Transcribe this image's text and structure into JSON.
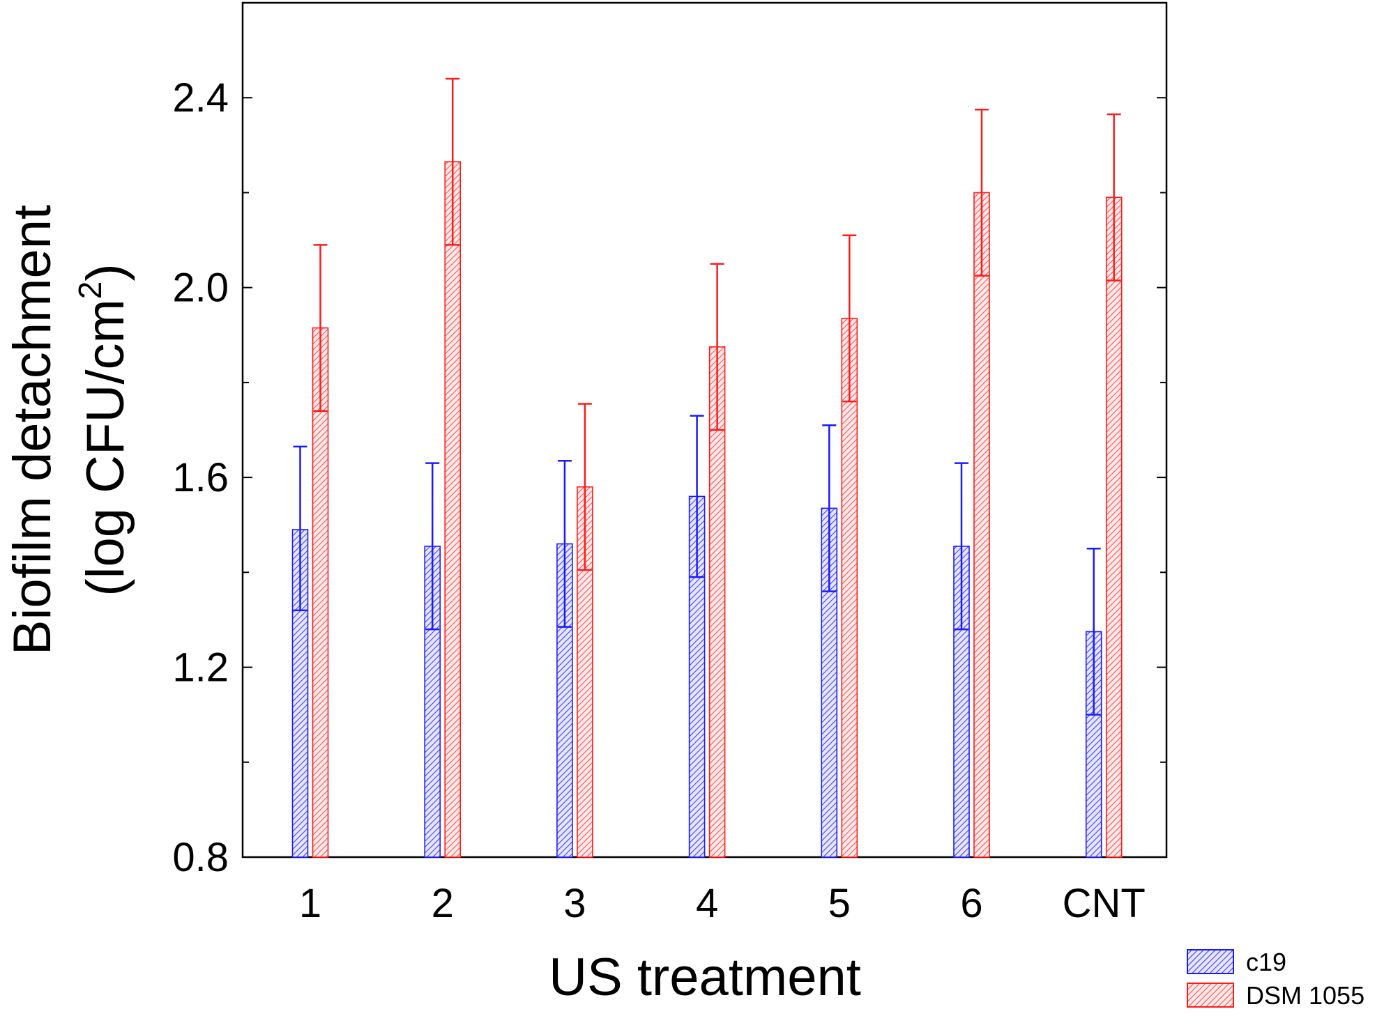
{
  "chart_data": {
    "type": "bar",
    "title": "",
    "xlabel": "US treatment",
    "ylabel_main": "Biofilm detachment",
    "ylabel_unit_prefix": "(log CFU/cm",
    "ylabel_unit_sup": "2",
    "ylabel_unit_suffix": ")",
    "ylim": [
      0.8,
      2.6
    ],
    "yticks": [
      0.8,
      1.2,
      1.6,
      2.0,
      2.4
    ],
    "ytick_labels": [
      "0.8",
      "1.2",
      "1.6",
      "2.0",
      "2.4"
    ],
    "yminor_ticks": [
      1.0,
      1.4,
      1.8,
      2.2
    ],
    "categories": [
      "1",
      "2",
      "3",
      "4",
      "5",
      "6",
      "CNT"
    ],
    "series": [
      {
        "name": "c19",
        "color": "#1a1aff",
        "values": [
          1.49,
          1.455,
          1.46,
          1.56,
          1.535,
          1.455,
          1.275
        ],
        "error_low": [
          1.32,
          1.28,
          1.285,
          1.39,
          1.36,
          1.28,
          1.1
        ],
        "error_high": [
          1.665,
          1.63,
          1.635,
          1.73,
          1.71,
          1.63,
          1.45
        ]
      },
      {
        "name": "DSM 1055",
        "color": "#ff1a1a",
        "values": [
          1.915,
          2.265,
          1.58,
          1.875,
          1.935,
          2.2,
          2.19
        ],
        "error_low": [
          1.74,
          2.09,
          1.405,
          1.7,
          1.76,
          2.025,
          2.015
        ],
        "error_high": [
          2.09,
          2.44,
          1.755,
          2.05,
          2.11,
          2.375,
          2.365
        ]
      }
    ],
    "legend": {
      "position": "bottom-right",
      "entries": [
        "c19",
        "DSM 1055"
      ]
    }
  }
}
